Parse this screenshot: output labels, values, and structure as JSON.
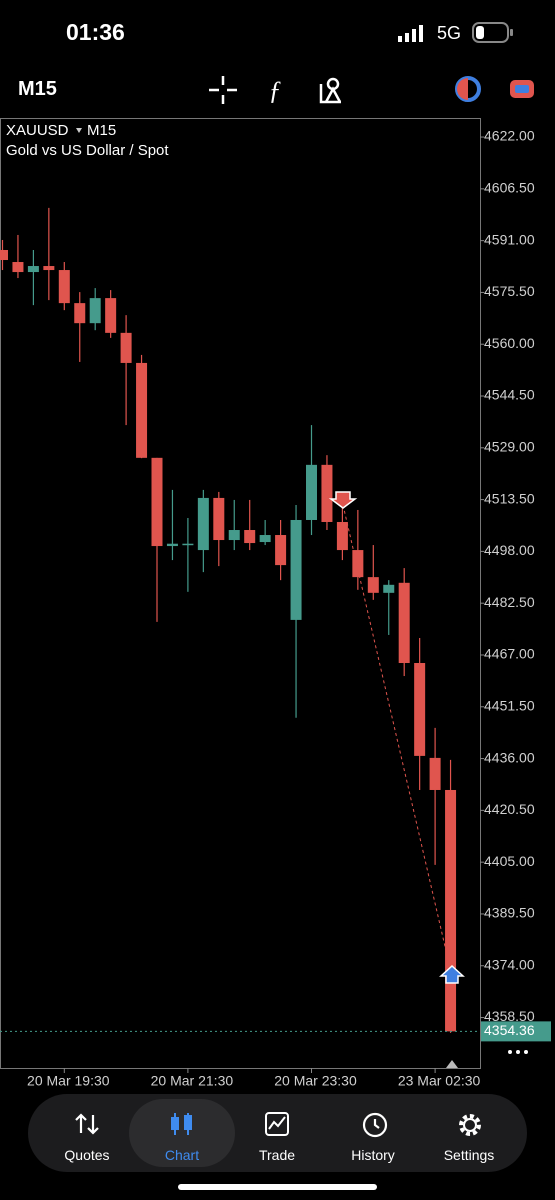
{
  "status_bar": {
    "time": "01:36",
    "network": "5G"
  },
  "toolbar": {
    "timeframe": "M15"
  },
  "chart_data": {
    "type": "candlestick",
    "symbol": "XAUUSD",
    "timeframe": "M15",
    "subtitle": "Gold vs US Dollar / Spot",
    "categories": [
      null,
      null,
      null,
      null,
      "20 Mar 19:30",
      null,
      null,
      null,
      null,
      null,
      null,
      null,
      "20 Mar 21:30",
      null,
      null,
      null,
      null,
      null,
      null,
      null,
      "20 Mar 23:30",
      null,
      null,
      null,
      null,
      null,
      null,
      null,
      "23 Mar 02:30",
      null
    ],
    "open": [
      4588.2,
      4584.6,
      4581.6,
      4583.4,
      4582.2,
      4572.3,
      4566.3,
      4573.8,
      4563.4,
      4554.4,
      4526.0,
      4499.6,
      4499.9,
      4498.4,
      4514.0,
      4501.4,
      4504.4,
      4500.8,
      4502.9,
      4477.5,
      4507.4,
      4523.9,
      4506.8,
      4498.4,
      4490.3,
      4485.6,
      4488.6,
      4464.6,
      4436.2,
      4426.6
    ],
    "high": [
      4591.2,
      4592.7,
      4588.2,
      4600.8,
      4584.6,
      4575.6,
      4576.8,
      4576.2,
      4568.7,
      4556.8,
      4526.0,
      4516.4,
      4508.0,
      4516.4,
      4515.8,
      4513.4,
      4513.4,
      4507.4,
      4507.4,
      4511.9,
      4535.8,
      4526.8,
      4511.9,
      4510.4,
      4499.9,
      4489.4,
      4493.0,
      4472.1,
      4445.2,
      4435.6
    ],
    "low": [
      4582.2,
      4579.8,
      4571.7,
      4573.2,
      4570.2,
      4554.7,
      4564.2,
      4561.9,
      4535.8,
      4525.9,
      4476.9,
      4495.4,
      4485.9,
      4491.8,
      4493.6,
      4498.4,
      4498.4,
      4499.9,
      4489.4,
      4448.2,
      4502.9,
      4504.4,
      4495.4,
      4486.5,
      4483.5,
      4473.0,
      4460.7,
      4426.6,
      4404.2,
      4353.9
    ],
    "close": [
      4585.2,
      4581.6,
      4583.4,
      4582.2,
      4572.3,
      4566.3,
      4573.8,
      4563.4,
      4554.4,
      4526.0,
      4499.6,
      4500.3,
      4500.3,
      4514.0,
      4501.4,
      4504.4,
      4500.5,
      4502.9,
      4493.9,
      4507.4,
      4523.9,
      4506.8,
      4498.4,
      4490.3,
      4485.6,
      4488.0,
      4464.6,
      4436.8,
      4426.6,
      4354.36
    ],
    "up_color": "#459b8c",
    "down_color": "#e0554e",
    "last_price": 4354.36,
    "ylim": [
      4343.4,
      4627.7
    ],
    "yticks": [
      {
        "value": 4622,
        "label": "4622.00"
      },
      {
        "value": 4606.5,
        "label": "4606.50"
      },
      {
        "value": 4591,
        "label": "4591.00"
      },
      {
        "value": 4575.5,
        "label": "4575.50"
      },
      {
        "value": 4560,
        "label": "4560.00"
      },
      {
        "value": 4544.5,
        "label": "4544.50"
      },
      {
        "value": 4529,
        "label": "4529.00"
      },
      {
        "value": 4513.5,
        "label": "4513.50"
      },
      {
        "value": 4498,
        "label": "4498.00"
      },
      {
        "value": 4482.5,
        "label": "4482.50"
      },
      {
        "value": 4467,
        "label": "4467.00"
      },
      {
        "value": 4451.5,
        "label": "4451.50"
      },
      {
        "value": 4436,
        "label": "4436.00"
      },
      {
        "value": 4420.5,
        "label": "4420.50"
      },
      {
        "value": 4405,
        "label": "4405.00"
      },
      {
        "value": 4389.5,
        "label": "4389.50"
      },
      {
        "value": 4374,
        "label": "4374.00"
      },
      {
        "value": 4358.5,
        "label": "4358.50"
      }
    ],
    "grid": false
  },
  "nav": {
    "items": [
      "Quotes",
      "Chart",
      "Trade",
      "History",
      "Settings"
    ]
  }
}
